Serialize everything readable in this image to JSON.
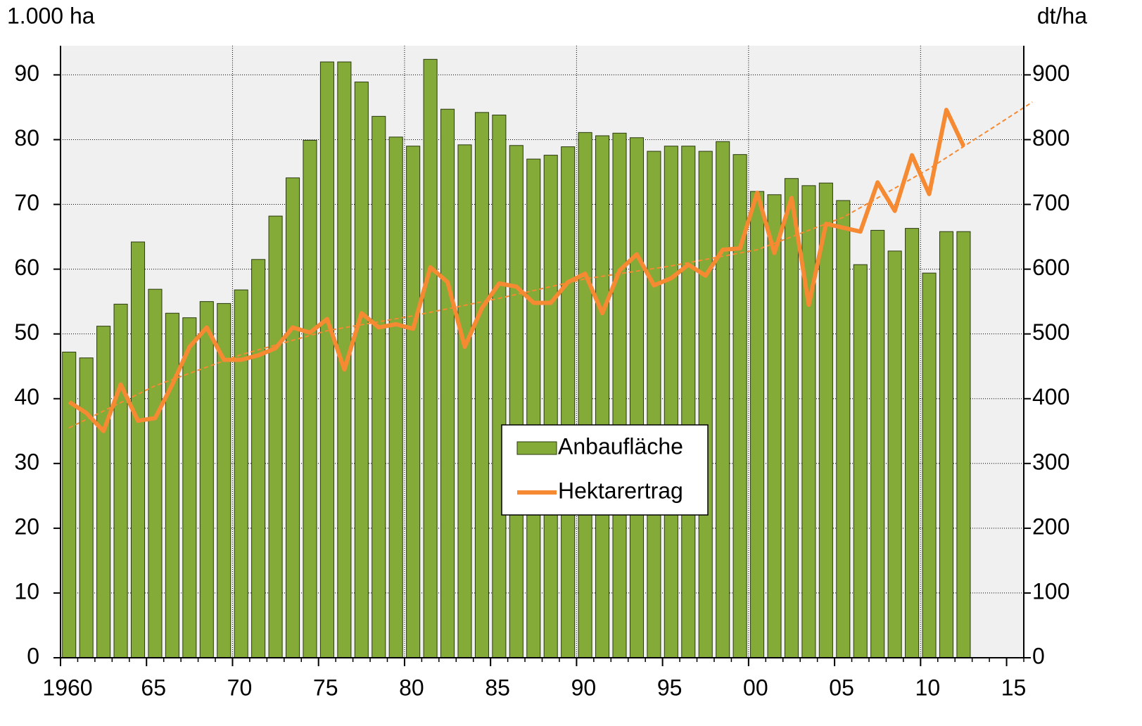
{
  "chart_data": {
    "type": "bar_line",
    "y_unit": "1.000 ha",
    "y2_unit": "dt/ha",
    "x": [
      1960,
      1961,
      1962,
      1963,
      1964,
      1965,
      1966,
      1967,
      1968,
      1969,
      1970,
      1971,
      1972,
      1973,
      1974,
      1975,
      1976,
      1977,
      1978,
      1979,
      1980,
      1981,
      1982,
      1983,
      1984,
      1985,
      1986,
      1987,
      1988,
      1989,
      1990,
      1991,
      1992,
      1993,
      1994,
      1995,
      1996,
      1997,
      1998,
      1999,
      2000,
      2001,
      2002,
      2003,
      2004,
      2005,
      2006,
      2007,
      2008,
      2009,
      2010,
      2011,
      2012
    ],
    "series": [
      {
        "name": "Anbaufläche",
        "color": "#84aa37",
        "kind": "bar",
        "values": [
          47.2,
          46.3,
          51.2,
          54.6,
          64.2,
          56.9,
          53.2,
          52.5,
          55.0,
          54.7,
          56.8,
          61.5,
          68.2,
          74.1,
          79.9,
          92.0,
          92.0,
          88.9,
          83.6,
          80.4,
          79.0,
          92.4,
          84.7,
          79.2,
          84.2,
          83.8,
          79.1,
          77.0,
          77.6,
          78.9,
          81.1,
          80.6,
          81.0,
          80.3,
          78.2,
          79.0,
          79.0,
          78.2,
          79.7,
          77.7,
          72.0,
          71.5,
          74.0,
          72.9,
          73.3,
          70.6,
          60.7,
          66.0,
          62.8,
          66.3,
          59.4,
          65.8,
          65.8
        ]
      },
      {
        "name": "Hektarertrag",
        "color": "#f58a33",
        "kind": "line",
        "axis": "y2",
        "values": [
          395,
          378,
          350,
          422,
          366,
          370,
          422,
          480,
          510,
          460,
          460,
          467,
          478,
          510,
          502,
          523,
          445,
          532,
          510,
          515,
          508,
          603,
          580,
          480,
          540,
          578,
          573,
          548,
          548,
          580,
          593,
          532,
          598,
          623,
          575,
          586,
          607,
          590,
          630,
          632,
          718,
          625,
          710,
          545,
          670,
          664,
          658,
          734,
          690,
          776,
          716,
          846,
          790
        ]
      }
    ],
    "trend": {
      "color": "#f58a33",
      "axis": "y2",
      "x": [
        1960,
        1965,
        1970,
        1975,
        1980,
        1985,
        1990,
        1995,
        2000,
        2005,
        2010,
        2016
      ],
      "values": [
        355,
        420,
        468,
        505,
        528,
        555,
        585,
        605,
        630,
        680,
        755,
        858
      ]
    },
    "xlim": [
      1960,
      2016
    ],
    "xticks": [
      1960,
      {
        "value": 1965,
        "label": "65"
      },
      {
        "value": 1970,
        "label": "70"
      },
      {
        "value": 1975,
        "label": "75"
      },
      {
        "value": 1980,
        "label": "80"
      },
      {
        "value": 1985,
        "label": "85"
      },
      {
        "value": 1990,
        "label": "90"
      },
      {
        "value": 1995,
        "label": "95"
      },
      {
        "value": 2000,
        "label": "00"
      },
      {
        "value": 2005,
        "label": "05"
      },
      {
        "value": 2010,
        "label": "10"
      },
      {
        "value": 2015,
        "label": "15"
      }
    ],
    "ylim": [
      0,
      94.5
    ],
    "yticks": [
      0,
      10,
      20,
      30,
      40,
      50,
      60,
      70,
      80,
      90
    ],
    "y2lim": [
      0,
      945
    ],
    "y2ticks": [
      0,
      100,
      200,
      300,
      400,
      500,
      600,
      700,
      800,
      900
    ],
    "grid": true,
    "legend": "center"
  }
}
